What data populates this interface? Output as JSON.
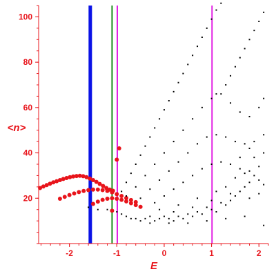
{
  "chart_data": {
    "type": "scatter",
    "title": "",
    "xlabel": "E",
    "ylabel": "<n>",
    "xlim": [
      -2.65,
      2.2
    ],
    "ylim": [
      0,
      105
    ],
    "grid": false,
    "x_ticks": [
      -2,
      -1,
      0,
      1,
      2
    ],
    "y_ticks": [
      20,
      40,
      60,
      80,
      100
    ],
    "axis_color": "#e8141b",
    "vertical_lines": [
      {
        "x": -1.56,
        "color": "#0a12e6",
        "width": "thick"
      },
      {
        "x": -1.1,
        "color": "#1a8a1a",
        "width": "medium"
      },
      {
        "x": -0.99,
        "color": "#e11de3",
        "width": "medium"
      },
      {
        "x": 1.01,
        "color": "#e11de3",
        "width": "medium"
      }
    ],
    "series": [
      {
        "color": "#e8141b",
        "marker": "large-dot",
        "points": [
          [
            -2.62,
            24.5
          ],
          [
            -2.55,
            25.2
          ],
          [
            -2.48,
            25.8
          ],
          [
            -2.41,
            26.4
          ],
          [
            -2.34,
            27.0
          ],
          [
            -2.27,
            27.5
          ],
          [
            -2.2,
            28.0
          ],
          [
            -2.13,
            28.5
          ],
          [
            -2.06,
            28.9
          ],
          [
            -1.99,
            29.3
          ],
          [
            -1.92,
            29.6
          ],
          [
            -1.85,
            29.8
          ],
          [
            -1.78,
            29.9
          ],
          [
            -1.71,
            29.7
          ],
          [
            -1.64,
            29.3
          ],
          [
            -1.57,
            28.7
          ],
          [
            -1.5,
            28.0
          ],
          [
            -1.43,
            27.2
          ],
          [
            -1.36,
            26.3
          ],
          [
            -1.29,
            25.4
          ],
          [
            -1.22,
            24.5
          ],
          [
            -1.15,
            23.8
          ],
          [
            -1.08,
            23.3
          ],
          [
            -2.2,
            19.8
          ],
          [
            -2.1,
            20.6
          ],
          [
            -2.0,
            21.4
          ],
          [
            -1.9,
            22.1
          ],
          [
            -1.8,
            22.7
          ],
          [
            -1.7,
            23.2
          ],
          [
            -1.6,
            23.6
          ],
          [
            -1.5,
            23.8
          ],
          [
            -1.4,
            23.8
          ],
          [
            -1.3,
            23.6
          ],
          [
            -1.2,
            23.2
          ],
          [
            -1.1,
            22.6
          ],
          [
            -1.0,
            21.8
          ],
          [
            -0.9,
            21.0
          ],
          [
            -0.8,
            20.1
          ],
          [
            -0.7,
            19.2
          ],
          [
            -0.6,
            18.3
          ],
          [
            -1.5,
            17.5
          ],
          [
            -1.4,
            18.5
          ],
          [
            -1.3,
            19.3
          ],
          [
            -1.2,
            19.8
          ],
          [
            -1.1,
            20.0
          ],
          [
            -1.0,
            19.8
          ],
          [
            -0.9,
            19.3
          ],
          [
            -0.8,
            18.6
          ],
          [
            -0.7,
            17.8
          ],
          [
            -0.6,
            17.0
          ],
          [
            -0.5,
            16.2
          ],
          [
            -1.0,
            37
          ],
          [
            -0.95,
            42
          ],
          [
            -1.1,
            14.5
          ]
        ]
      },
      {
        "color": "#000000",
        "marker": "small-dot",
        "points": [
          [
            -0.9,
            23
          ],
          [
            -0.8,
            27
          ],
          [
            -0.7,
            31
          ],
          [
            -0.6,
            35
          ],
          [
            -0.5,
            39
          ],
          [
            -0.4,
            43
          ],
          [
            -0.3,
            47
          ],
          [
            -0.2,
            51
          ],
          [
            -0.1,
            55
          ],
          [
            0.0,
            59
          ],
          [
            0.1,
            63
          ],
          [
            0.2,
            67
          ],
          [
            0.3,
            71
          ],
          [
            0.4,
            75
          ],
          [
            0.5,
            79
          ],
          [
            0.6,
            83
          ],
          [
            0.7,
            87
          ],
          [
            0.8,
            91
          ],
          [
            0.9,
            95
          ],
          [
            1.0,
            99
          ],
          [
            1.1,
            103
          ],
          [
            1.2,
            106
          ],
          [
            1.3,
            70
          ],
          [
            1.4,
            74
          ],
          [
            1.5,
            78
          ],
          [
            1.6,
            82
          ],
          [
            1.7,
            86
          ],
          [
            1.8,
            90
          ],
          [
            1.9,
            94
          ],
          [
            2.0,
            98
          ],
          [
            2.1,
            102
          ],
          [
            -0.8,
            21
          ],
          [
            -0.6,
            25
          ],
          [
            -0.4,
            30
          ],
          [
            -0.2,
            35
          ],
          [
            0.0,
            40
          ],
          [
            0.2,
            45
          ],
          [
            0.4,
            50
          ],
          [
            0.6,
            55
          ],
          [
            0.8,
            60
          ],
          [
            1.0,
            64
          ],
          [
            1.1,
            66
          ],
          [
            1.2,
            66
          ],
          [
            1.4,
            62
          ],
          [
            1.6,
            58
          ],
          [
            1.8,
            56
          ],
          [
            2.0,
            60
          ],
          [
            2.1,
            64
          ],
          [
            -0.5,
            20
          ],
          [
            -0.3,
            24
          ],
          [
            -0.1,
            28
          ],
          [
            0.1,
            32
          ],
          [
            0.3,
            36
          ],
          [
            0.5,
            40
          ],
          [
            0.7,
            44
          ],
          [
            0.9,
            47
          ],
          [
            1.1,
            48
          ],
          [
            1.3,
            47
          ],
          [
            1.5,
            45
          ],
          [
            1.7,
            44
          ],
          [
            1.9,
            45
          ],
          [
            2.1,
            48
          ],
          [
            -0.2,
            18
          ],
          [
            0.0,
            21
          ],
          [
            0.2,
            24
          ],
          [
            0.4,
            27
          ],
          [
            0.6,
            30
          ],
          [
            0.8,
            33
          ],
          [
            1.0,
            35
          ],
          [
            1.2,
            36
          ],
          [
            1.4,
            35
          ],
          [
            1.6,
            33
          ],
          [
            1.8,
            32
          ],
          [
            2.0,
            34
          ],
          [
            -1.6,
            16
          ],
          [
            -1.4,
            15
          ],
          [
            -1.2,
            15
          ],
          [
            -1.0,
            14
          ],
          [
            -0.9,
            13
          ],
          [
            -0.8,
            12
          ],
          [
            -0.7,
            11
          ],
          [
            -0.6,
            11
          ],
          [
            -0.5,
            10
          ],
          [
            -0.4,
            11
          ],
          [
            -0.3,
            12
          ],
          [
            -0.2,
            10
          ],
          [
            -0.1,
            11
          ],
          [
            0.0,
            12
          ],
          [
            0.1,
            11
          ],
          [
            0.2,
            10
          ],
          [
            0.3,
            12
          ],
          [
            0.4,
            11
          ],
          [
            0.5,
            13
          ],
          [
            0.6,
            12
          ],
          [
            0.7,
            14
          ],
          [
            0.8,
            13
          ],
          [
            0.9,
            16
          ],
          [
            1.0,
            15
          ],
          [
            1.1,
            14
          ],
          [
            1.2,
            18
          ],
          [
            1.3,
            17
          ],
          [
            1.4,
            19
          ],
          [
            1.5,
            21
          ],
          [
            1.6,
            23
          ],
          [
            1.7,
            25
          ],
          [
            1.8,
            27
          ],
          [
            1.9,
            30
          ],
          [
            2.0,
            28
          ],
          [
            2.1,
            26
          ],
          [
            -0.3,
            9
          ],
          [
            0.1,
            9
          ],
          [
            0.5,
            9
          ],
          [
            0.9,
            10
          ],
          [
            1.3,
            11
          ],
          [
            1.7,
            12
          ],
          [
            2.1,
            8
          ],
          [
            0.2,
            14
          ],
          [
            0.6,
            16
          ],
          [
            1.0,
            19
          ],
          [
            1.4,
            22
          ],
          [
            1.8,
            20
          ],
          [
            2.0,
            22
          ],
          [
            1.5,
            29
          ],
          [
            1.7,
            31
          ],
          [
            1.9,
            38
          ],
          [
            2.1,
            40
          ],
          [
            1.6,
            38
          ],
          [
            1.8,
            42
          ],
          [
            1.3,
            25
          ],
          [
            1.1,
            23
          ],
          [
            0.7,
            20
          ],
          [
            0.3,
            17
          ],
          [
            -0.1,
            15
          ]
        ]
      }
    ]
  }
}
